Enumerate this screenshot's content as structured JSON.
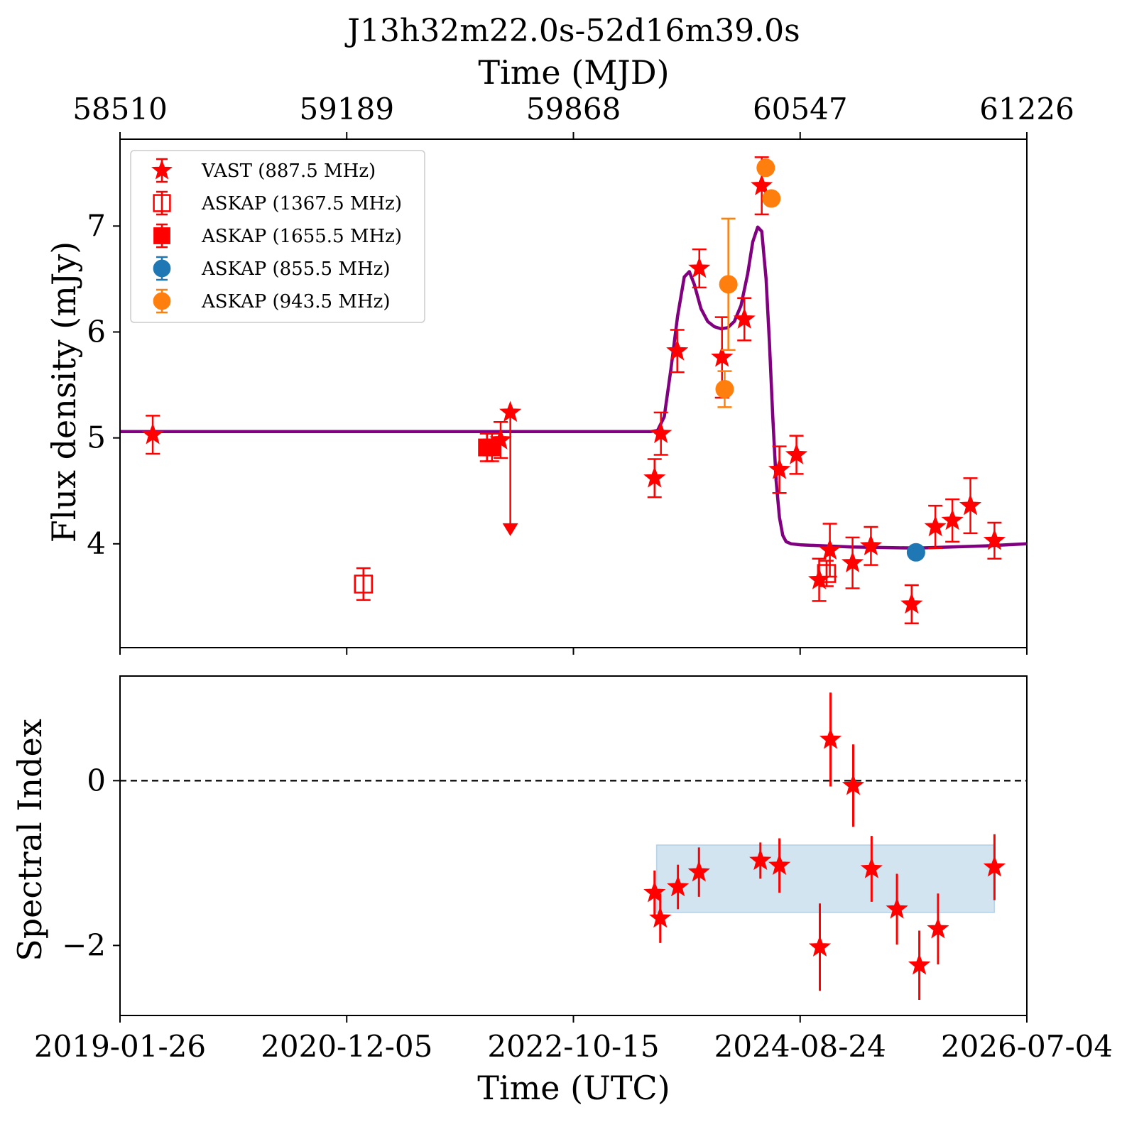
{
  "chart_data": [
    {
      "type": "scatter",
      "title": "J13h32m22.0s-52d16m39.0s",
      "top_xlabel": "Time (MJD)",
      "ylabel": "Flux density (mJy)",
      "xlim_mjd": [
        58510,
        61226
      ],
      "ylim": [
        3.02,
        7.82
      ],
      "top_ticks": [
        58510,
        59189,
        59868,
        60547,
        61226
      ],
      "top_tick_labels": [
        "58510",
        "59189",
        "59868",
        "60547",
        "61226"
      ],
      "yticks": [
        4,
        5,
        6,
        7
      ],
      "ytick_labels": [
        "4",
        "5",
        "6",
        "7"
      ],
      "legend_position": "upper-left",
      "legend": [
        {
          "label": "VAST (887.5 MHz)",
          "marker": "star-filled",
          "color": "#ff0000"
        },
        {
          "label": "ASKAP (1367.5 MHz)",
          "marker": "square-open",
          "color": "#ff0000"
        },
        {
          "label": "ASKAP (1655.5 MHz)",
          "marker": "square-filled",
          "color": "#ff0000"
        },
        {
          "label": "ASKAP (855.5 MHz)",
          "marker": "circle-filled",
          "color": "#1f77b4"
        },
        {
          "label": "ASKAP (943.5 MHz)",
          "marker": "circle-filled",
          "color": "#ff7f0e"
        }
      ],
      "series": [
        {
          "name": "VAST (887.5 MHz)",
          "marker": "star-filled",
          "color": "#ff0000",
          "points": [
            {
              "x": 58608,
              "y": 5.03,
              "err": 0.18
            },
            {
              "x": 59650,
              "y": 4.98,
              "err": 0.17
            },
            {
              "x": 60111,
              "y": 4.62,
              "err": 0.18
            },
            {
              "x": 60130,
              "y": 5.04,
              "err": 0.2
            },
            {
              "x": 60179,
              "y": 5.82,
              "err": 0.2
            },
            {
              "x": 60245,
              "y": 6.6,
              "err": 0.18
            },
            {
              "x": 60313,
              "y": 5.76,
              "err": 0.38
            },
            {
              "x": 60380,
              "y": 6.12,
              "err": 0.2
            },
            {
              "x": 60432,
              "y": 7.38,
              "err": 0.27
            },
            {
              "x": 60485,
              "y": 4.7,
              "err": 0.22
            },
            {
              "x": 60536,
              "y": 4.84,
              "err": 0.18
            },
            {
              "x": 60604,
              "y": 3.66,
              "err": 0.2
            },
            {
              "x": 60636,
              "y": 3.94,
              "err": 0.25
            },
            {
              "x": 60704,
              "y": 3.82,
              "err": 0.24
            },
            {
              "x": 60759,
              "y": 3.98,
              "err": 0.18
            },
            {
              "x": 60881,
              "y": 3.43,
              "err": 0.18
            },
            {
              "x": 60952,
              "y": 4.16,
              "err": 0.2
            },
            {
              "x": 61003,
              "y": 4.22,
              "err": 0.2
            },
            {
              "x": 61057,
              "y": 4.36,
              "err": 0.26
            },
            {
              "x": 61129,
              "y": 4.03,
              "err": 0.17
            }
          ]
        },
        {
          "name": "VAST (887.5 MHz) upper limit",
          "marker": "star-filled",
          "color": "#ff0000",
          "points": [
            {
              "x": 59679,
              "y": 5.24,
              "arrow_to": 4.1
            }
          ]
        },
        {
          "name": "ASKAP (1367.5 MHz)",
          "marker": "square-open",
          "color": "#ff0000",
          "points": [
            {
              "x": 59239,
              "y": 3.62,
              "err": 0.15
            },
            {
              "x": 60626,
              "y": 3.72,
              "err": 0.12
            }
          ]
        },
        {
          "name": "ASKAP (1655.5 MHz)",
          "marker": "square-filled",
          "color": "#ff0000",
          "points": [
            {
              "x": 59609,
              "y": 4.91,
              "err": 0.13
            },
            {
              "x": 59624,
              "y": 4.91,
              "err": 0.13
            }
          ]
        },
        {
          "name": "ASKAP (855.5 MHz)",
          "marker": "circle-filled",
          "color": "#1f77b4",
          "points": [
            {
              "x": 60894,
              "y": 3.92,
              "err": 0.05
            }
          ]
        },
        {
          "name": "ASKAP (943.5 MHz)",
          "marker": "circle-filled",
          "color": "#ff7f0e",
          "points": [
            {
              "x": 60321,
              "y": 5.46,
              "err": 0.17
            },
            {
              "x": 60332,
              "y": 6.45,
              "err": 0.62
            },
            {
              "x": 60444,
              "y": 7.55,
              "err": 0.05
            },
            {
              "x": 60461,
              "y": 7.26,
              "err": 0.05
            }
          ]
        }
      ],
      "model_curve": {
        "color": "#800080",
        "x": [
          58510,
          60100,
          60120,
          60140,
          60160,
          60180,
          60200,
          60215,
          60230,
          60250,
          60270,
          60290,
          60310,
          60330,
          60350,
          60370,
          60390,
          60405,
          60420,
          60432,
          60445,
          60455,
          60465,
          60475,
          60485,
          60495,
          60505,
          60520,
          60550,
          60700,
          60900,
          61100,
          61226
        ],
        "y": [
          5.06,
          5.06,
          5.07,
          5.2,
          5.65,
          6.15,
          6.52,
          6.57,
          6.45,
          6.22,
          6.1,
          6.05,
          6.03,
          6.04,
          6.1,
          6.25,
          6.55,
          6.85,
          6.99,
          6.95,
          6.5,
          5.9,
          5.2,
          4.6,
          4.25,
          4.08,
          4.02,
          4.0,
          3.99,
          3.97,
          3.96,
          3.98,
          4.0
        ]
      }
    },
    {
      "type": "scatter",
      "xlabel": "Time (UTC)",
      "ylabel": "Spectral Index",
      "xlim_mjd": [
        58510,
        61226
      ],
      "ylim": [
        -2.85,
        1.27
      ],
      "yticks": [
        -2,
        0
      ],
      "ytick_labels": [
        "−2",
        "0"
      ],
      "bottom_ticks": [
        58510,
        59189,
        59868,
        60547,
        61226
      ],
      "bottom_tick_labels": [
        "2019-01-26",
        "2020-12-05",
        "2022-10-15",
        "2024-08-24",
        "2026-07-04"
      ],
      "reference_line": {
        "y": 0,
        "style": "dashed",
        "color": "#000000"
      },
      "shaded_band": {
        "x0": 60117,
        "x1": 61129,
        "y0": -1.6,
        "y1": -0.78,
        "color": "#1f77b4"
      },
      "series": [
        {
          "name": "VAST (887.5 MHz)",
          "marker": "star-filled",
          "color": "#ff0000",
          "points": [
            {
              "x": 60111,
              "y": -1.36,
              "err": 0.27
            },
            {
              "x": 60128,
              "y": -1.67,
              "err": 0.3
            },
            {
              "x": 60181,
              "y": -1.29,
              "err": 0.27
            },
            {
              "x": 60244,
              "y": -1.11,
              "err": 0.3
            },
            {
              "x": 60428,
              "y": -0.97,
              "err": 0.22
            },
            {
              "x": 60485,
              "y": -1.03,
              "err": 0.33
            },
            {
              "x": 60606,
              "y": -2.02,
              "err": 0.53
            },
            {
              "x": 60638,
              "y": 0.5,
              "err": 0.57
            },
            {
              "x": 60706,
              "y": -0.06,
              "err": 0.5
            },
            {
              "x": 60761,
              "y": -1.07,
              "err": 0.4
            },
            {
              "x": 60837,
              "y": -1.56,
              "err": 0.43
            },
            {
              "x": 60904,
              "y": -2.24,
              "err": 0.42
            },
            {
              "x": 60960,
              "y": -1.8,
              "err": 0.43
            },
            {
              "x": 61129,
              "y": -1.05,
              "err": 0.4
            }
          ]
        }
      ]
    }
  ]
}
